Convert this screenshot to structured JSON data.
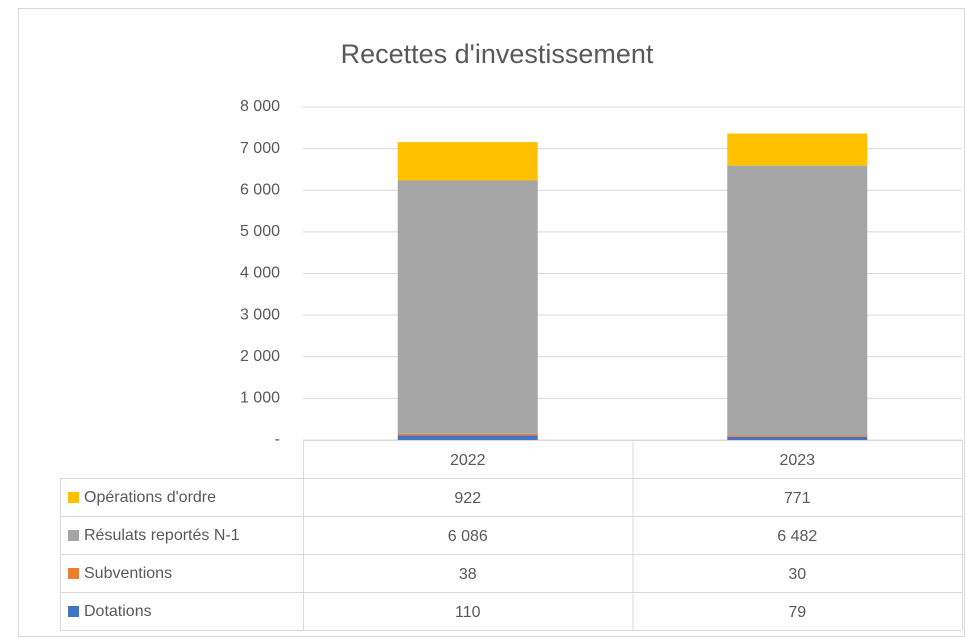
{
  "chart_data": {
    "type": "stacked_bar",
    "title": "Recettes d'investissement",
    "categories": [
      "2022",
      "2023"
    ],
    "series": [
      {
        "name": "Dotations",
        "color": "#4472c4",
        "values": [
          110,
          79
        ],
        "value_labels": [
          "110",
          "79"
        ]
      },
      {
        "name": "Subventions",
        "color": "#ed7d31",
        "values": [
          38,
          30
        ],
        "value_labels": [
          "38",
          "30"
        ]
      },
      {
        "name": "Résulats reportés N-1",
        "color": "#a5a5a5",
        "values": [
          6086,
          6482
        ],
        "value_labels": [
          "6 086",
          "6 482"
        ]
      },
      {
        "name": "Opérations d'ordre",
        "color": "#ffc000",
        "values": [
          922,
          771
        ],
        "value_labels": [
          "922",
          "771"
        ]
      }
    ],
    "ylim": [
      0,
      8000
    ],
    "yticks": [
      {
        "value": 0,
        "label": "-"
      },
      {
        "value": 1000,
        "label": "1 000"
      },
      {
        "value": 2000,
        "label": "2 000"
      },
      {
        "value": 3000,
        "label": "3 000"
      },
      {
        "value": 4000,
        "label": "4 000"
      },
      {
        "value": 5000,
        "label": "5 000"
      },
      {
        "value": 6000,
        "label": "6 000"
      },
      {
        "value": 7000,
        "label": "7 000"
      },
      {
        "value": 8000,
        "label": "8 000"
      }
    ],
    "grid": true,
    "legend": "data-table"
  }
}
